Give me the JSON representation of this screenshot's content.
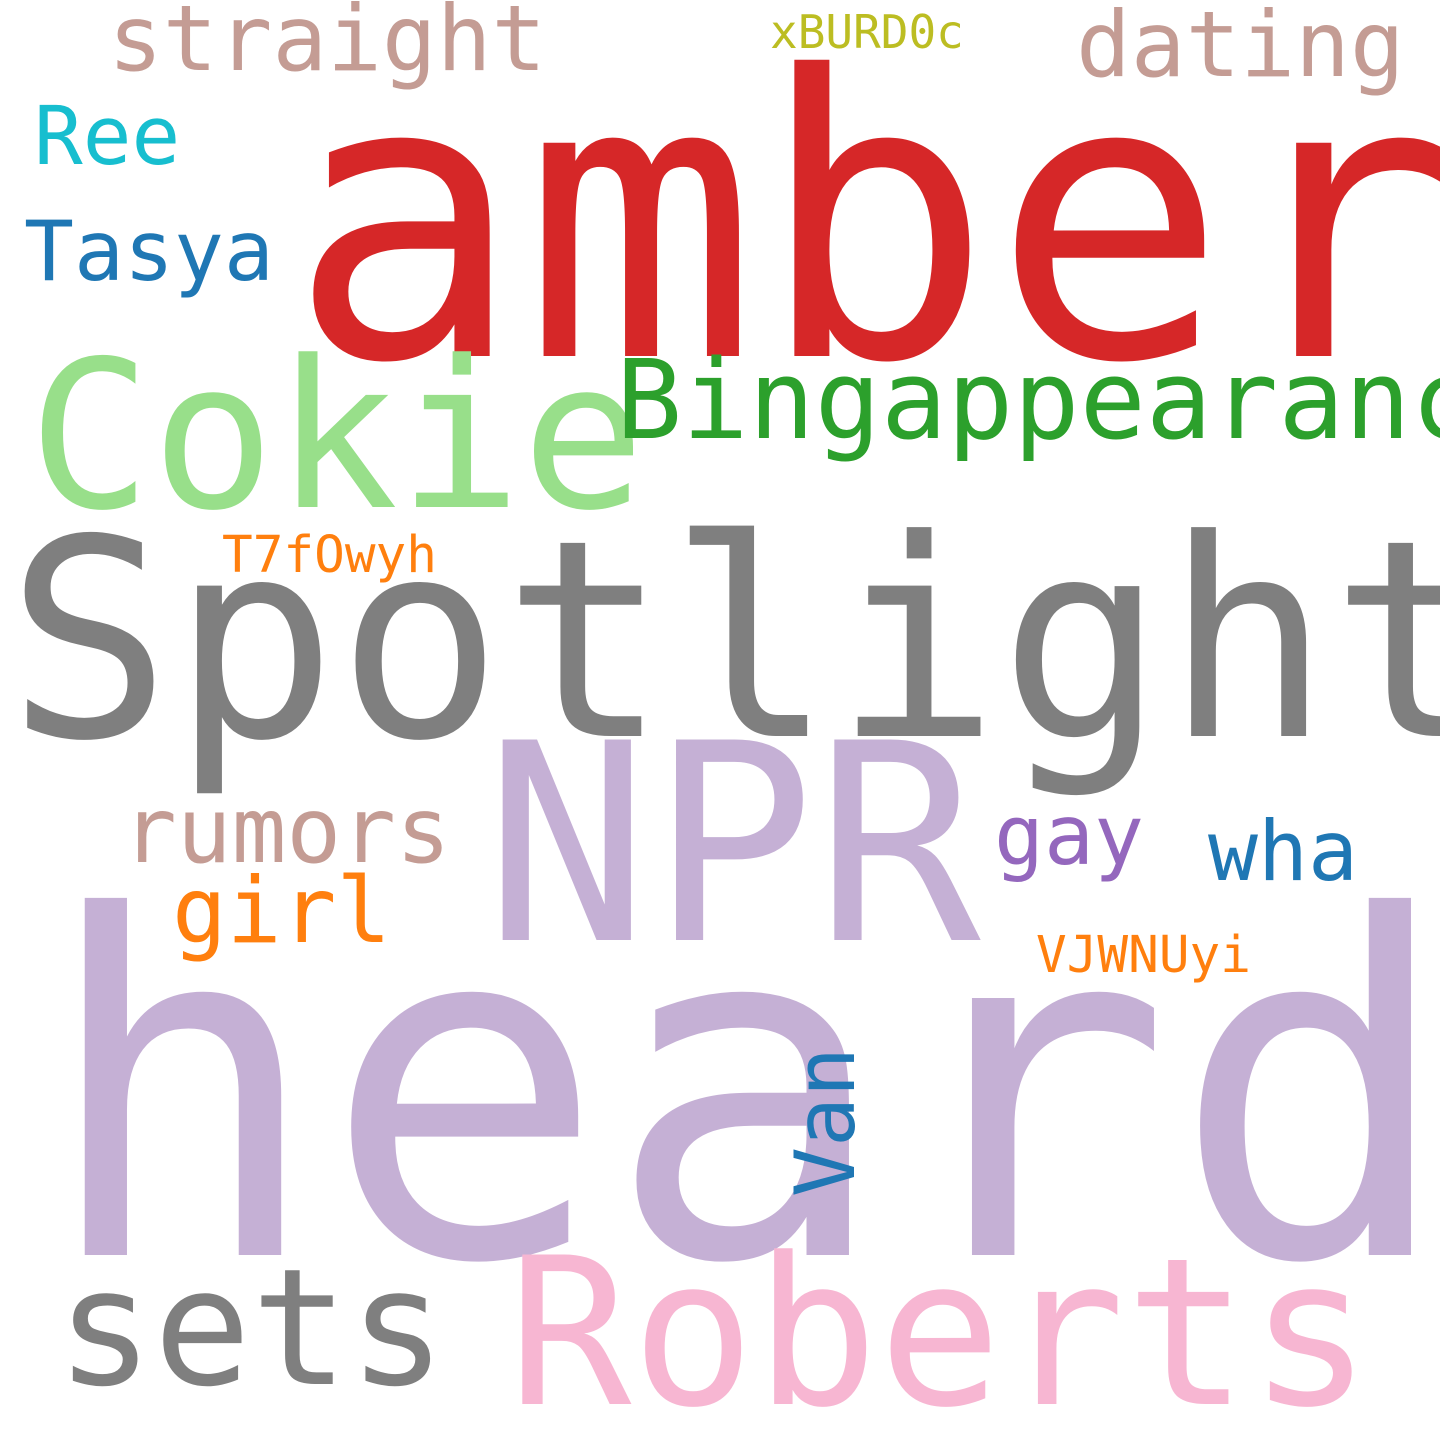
{
  "cloud": {
    "background": "#ffffff",
    "words": {
      "heard": {
        "text": "heard",
        "color": "#c5b0d5"
      },
      "spotlight": {
        "text": "Spotlight",
        "color": "#7f7f7f"
      },
      "amber": {
        "text": "amber",
        "color": "#d62728"
      },
      "npr": {
        "text": "NPR",
        "color": "#c5b0d5"
      },
      "cokie": {
        "text": "Cokie",
        "color": "#98df8a"
      },
      "roberts": {
        "text": "Roberts",
        "color": "#f7b6d2"
      },
      "sets": {
        "text": "sets",
        "color": "#7f7f7f"
      },
      "bingappearance": {
        "text": "Bingappearance",
        "color": "#2ca02c"
      },
      "straight": {
        "text": "straight",
        "color": "#c49c94"
      },
      "dating": {
        "text": "dating",
        "color": "#c49c94"
      },
      "rumors": {
        "text": "rumors",
        "color": "#c49c94"
      },
      "tasya": {
        "text": "Tasya",
        "color": "#1f77b4"
      },
      "ree": {
        "text": "Ree",
        "color": "#17becf"
      },
      "girl": {
        "text": "girl",
        "color": "#ff7f0e"
      },
      "gay": {
        "text": "gay",
        "color": "#9467bd"
      },
      "wha": {
        "text": "wha",
        "color": "#1f77b4"
      },
      "van": {
        "text": "Van",
        "color": "#1f77b4"
      },
      "t7f0wyh": {
        "text": "T7fOwyh",
        "color": "#ff7f0e"
      },
      "vjwnuyi": {
        "text": "VJWNUyi",
        "color": "#ff7f0e"
      },
      "xburd0c": {
        "text": "xBURD0c",
        "color": "#bcbd22"
      }
    }
  }
}
